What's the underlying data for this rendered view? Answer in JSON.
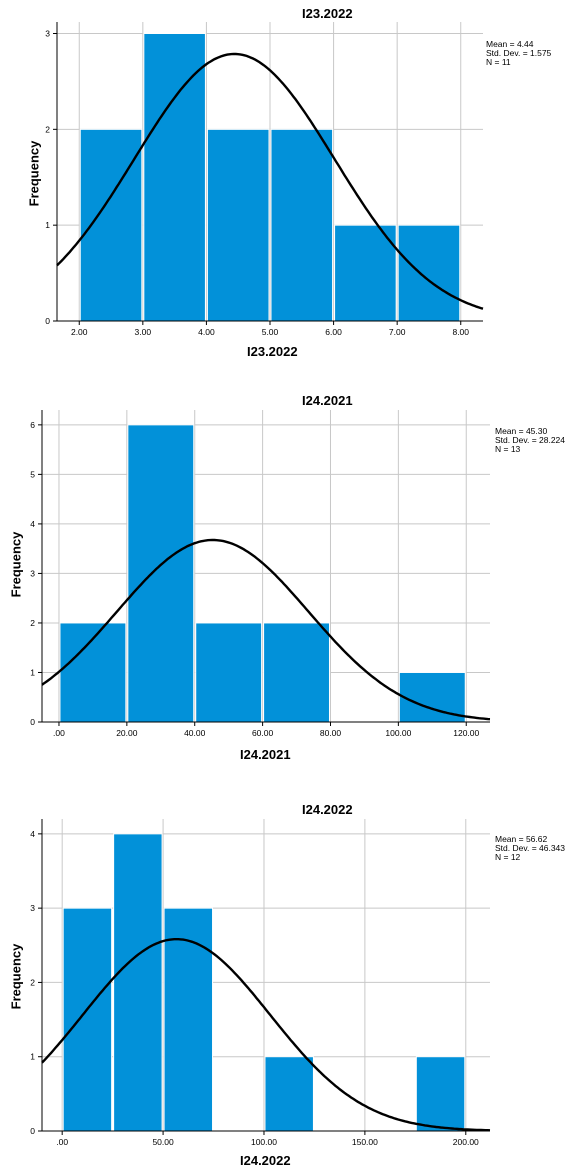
{
  "chart_data": [
    {
      "type": "bar",
      "title": "I23.2022",
      "xlabel": "I23.2022",
      "ylabel": "Frequency",
      "stats": {
        "mean": "Mean = 4.44",
        "std": "Std. Dev. = 1.575",
        "n": "N = 11"
      },
      "xlim": [
        1.65,
        8.35
      ],
      "ylim": [
        0,
        3.12
      ],
      "x_ticks": [
        2,
        3,
        4,
        5,
        6,
        7,
        8
      ],
      "x_tick_labels": [
        "2.00",
        "3.00",
        "4.00",
        "5.00",
        "6.00",
        "7.00",
        "8.00"
      ],
      "y_ticks": [
        0,
        1,
        2,
        3
      ],
      "bins": [
        {
          "from": 2,
          "to": 3,
          "count": 2
        },
        {
          "from": 3,
          "to": 4,
          "count": 3
        },
        {
          "from": 4,
          "to": 5,
          "count": 2
        },
        {
          "from": 5,
          "to": 6,
          "count": 2
        },
        {
          "from": 6,
          "to": 7,
          "count": 1
        },
        {
          "from": 7,
          "to": 8,
          "count": 1
        }
      ],
      "normal_curve": {
        "mean": 4.44,
        "sd": 1.575,
        "n": 11,
        "bin_width": 1
      },
      "grid": true,
      "bar_color": "#0291d9"
    },
    {
      "type": "bar",
      "title": "I24.2021",
      "xlabel": "I24.2021",
      "ylabel": "Frequency",
      "stats": {
        "mean": "Mean = 45.30",
        "std": "Std. Dev. = 28.224",
        "n": "N = 13"
      },
      "xlim": [
        -5,
        127
      ],
      "ylim": [
        0,
        6.3
      ],
      "x_ticks": [
        0,
        20,
        40,
        60,
        80,
        100,
        120
      ],
      "x_tick_labels": [
        ".00",
        "20.00",
        "40.00",
        "60.00",
        "80.00",
        "100.00",
        "120.00"
      ],
      "y_ticks": [
        0,
        1,
        2,
        3,
        4,
        5,
        6
      ],
      "bins": [
        {
          "from": 0,
          "to": 20,
          "count": 2
        },
        {
          "from": 20,
          "to": 40,
          "count": 6
        },
        {
          "from": 40,
          "to": 60,
          "count": 2
        },
        {
          "from": 60,
          "to": 80,
          "count": 2
        },
        {
          "from": 80,
          "to": 100,
          "count": 0
        },
        {
          "from": 100,
          "to": 120,
          "count": 1
        }
      ],
      "normal_curve": {
        "mean": 45.3,
        "sd": 28.224,
        "n": 13,
        "bin_width": 20
      },
      "grid": true,
      "bar_color": "#0291d9"
    },
    {
      "type": "bar",
      "title": "I24.2022",
      "xlabel": "I24.2022",
      "ylabel": "Frequency",
      "stats": {
        "mean": "Mean = 56.62",
        "std": "Std. Dev. = 46.343",
        "n": "N = 12"
      },
      "xlim": [
        -10,
        212
      ],
      "ylim": [
        0,
        4.2
      ],
      "x_ticks": [
        0,
        50,
        100,
        150,
        200
      ],
      "x_tick_labels": [
        ".00",
        "50.00",
        "100.00",
        "150.00",
        "200.00"
      ],
      "y_ticks": [
        0,
        1,
        2,
        3,
        4
      ],
      "bins": [
        {
          "from": 0,
          "to": 25,
          "count": 3
        },
        {
          "from": 25,
          "to": 50,
          "count": 4
        },
        {
          "from": 50,
          "to": 75,
          "count": 3
        },
        {
          "from": 75,
          "to": 100,
          "count": 0
        },
        {
          "from": 100,
          "to": 125,
          "count": 1
        },
        {
          "from": 125,
          "to": 150,
          "count": 0
        },
        {
          "from": 150,
          "to": 175,
          "count": 0
        },
        {
          "from": 175,
          "to": 200,
          "count": 1
        }
      ],
      "normal_curve": {
        "mean": 56.62,
        "sd": 46.343,
        "n": 12,
        "bin_width": 25
      },
      "grid": true,
      "bar_color": "#0291d9"
    }
  ]
}
